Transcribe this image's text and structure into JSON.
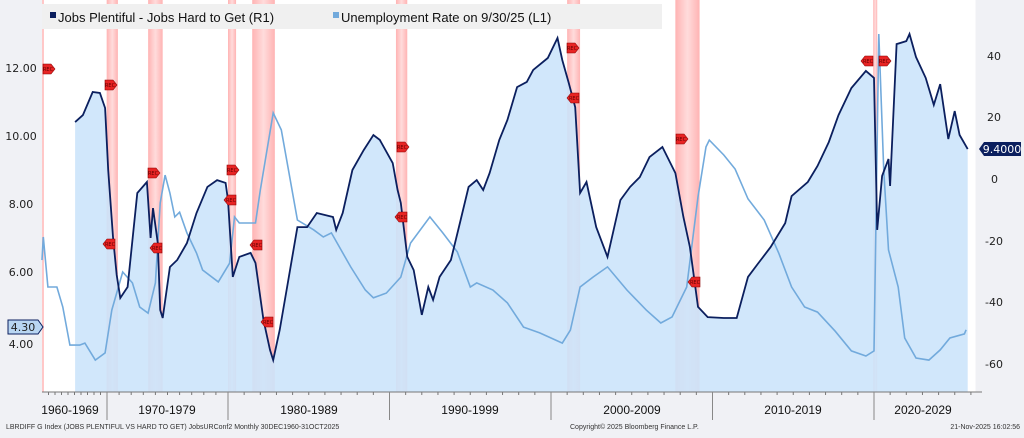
{
  "chart_data": {
    "type": "area",
    "legend": {
      "position": "top-left",
      "items": [
        "Jobs Plentiful - Jobs Hard to Get (R1)",
        "Unemployment Rate on 9/30/25 (L1)"
      ]
    },
    "left_axis": {
      "ticks": [
        "12.00",
        "10.00",
        "8.00",
        "6.00",
        "4.00"
      ],
      "range": [
        2.9,
        13.1
      ]
    },
    "right_axis": {
      "ticks": [
        "40",
        "20",
        "0",
        "-20",
        "-40",
        "-60"
      ],
      "range": [
        -70,
        48
      ]
    },
    "x_axis": {
      "range": [
        1960,
        2026
      ],
      "labels": [
        "1960-1969",
        "1970-1979",
        "1980-1989",
        "1990-1999",
        "2000-2009",
        "2010-2019",
        "2020-2029"
      ]
    },
    "grid": false,
    "colors": {
      "jobs_line": "#0b1f5e",
      "jobs_fill": "#cce4fb",
      "unemployment_line": "#72aadc",
      "recession": "#ff9a9a"
    },
    "last_values": {
      "jobs": "9.4000",
      "unemployment": "4.30"
    },
    "recession_marker_label": "REC",
    "recessions": [
      [
        1960.0,
        1960.15
      ],
      [
        1969.95,
        1970.9
      ],
      [
        1973.4,
        1974.6
      ],
      [
        1980.0,
        1980.5
      ],
      [
        1981.5,
        1982.9
      ],
      [
        1990.4,
        1991.1
      ],
      [
        2001.0,
        2001.8
      ],
      [
        2007.7,
        2009.2
      ],
      [
        2019.95,
        2020.2
      ]
    ],
    "series": [
      {
        "name": "Jobs Plentiful - Jobs Hard to Get (R1)",
        "axis": "right",
        "filled": true,
        "points": [
          [
            1965.1,
            18.2
          ],
          [
            1966.3,
            20.5
          ],
          [
            1967.8,
            28.0
          ],
          [
            1968.9,
            27.7
          ],
          [
            1969.7,
            22.8
          ],
          [
            1970.1,
            2.6
          ],
          [
            1970.5,
            -19.2
          ],
          [
            1970.8,
            -31.6
          ],
          [
            1971.1,
            -39.1
          ],
          [
            1971.7,
            -35.5
          ],
          [
            1972.5,
            -4.9
          ],
          [
            1973.3,
            -1.3
          ],
          [
            1973.6,
            -19.5
          ],
          [
            1973.8,
            -9.8
          ],
          [
            1974.2,
            -21.2
          ],
          [
            1974.4,
            -43.0
          ],
          [
            1974.6,
            -45.6
          ],
          [
            1975.2,
            -29.0
          ],
          [
            1975.8,
            -26.7
          ],
          [
            1976.6,
            -21.2
          ],
          [
            1977.4,
            -11.4
          ],
          [
            1978.3,
            -2.9
          ],
          [
            1979.1,
            -0.7
          ],
          [
            1979.8,
            -1.6
          ],
          [
            1980.0,
            -7.2
          ],
          [
            1980.3,
            -32.2
          ],
          [
            1980.7,
            -25.7
          ],
          [
            1981.4,
            -24.4
          ],
          [
            1981.7,
            -27.7
          ],
          [
            1982.2,
            -46.3
          ],
          [
            1982.6,
            -56.0
          ],
          [
            1982.8,
            -59.3
          ],
          [
            1983.2,
            -49.5
          ],
          [
            1983.7,
            -34.2
          ],
          [
            1984.3,
            -16.0
          ],
          [
            1984.9,
            -16.0
          ],
          [
            1985.5,
            -11.4
          ],
          [
            1986.5,
            -12.7
          ],
          [
            1986.7,
            -16.9
          ],
          [
            1987.1,
            -11.4
          ],
          [
            1987.7,
            2.6
          ],
          [
            1988.4,
            9.1
          ],
          [
            1989.0,
            14.0
          ],
          [
            1989.4,
            12.4
          ],
          [
            1990.2,
            4.9
          ],
          [
            1990.5,
            -3.9
          ],
          [
            1990.7,
            -8.1
          ],
          [
            1991.1,
            -25.7
          ],
          [
            1991.5,
            -30.0
          ],
          [
            1992.0,
            -44.6
          ],
          [
            1992.4,
            -35.5
          ],
          [
            1992.7,
            -39.7
          ],
          [
            1993.1,
            -32.2
          ],
          [
            1993.8,
            -26.7
          ],
          [
            1994.4,
            -13.7
          ],
          [
            1994.9,
            -2.9
          ],
          [
            1995.4,
            -0.7
          ],
          [
            1995.8,
            -3.9
          ],
          [
            1996.2,
            1.6
          ],
          [
            1996.8,
            12.4
          ],
          [
            1997.3,
            18.9
          ],
          [
            1997.9,
            29.6
          ],
          [
            1998.5,
            31.3
          ],
          [
            1998.9,
            35.2
          ],
          [
            1999.8,
            39.1
          ],
          [
            2000.4,
            45.6
          ],
          [
            2000.7,
            38.4
          ],
          [
            2001.1,
            30.9
          ],
          [
            2001.5,
            23.1
          ],
          [
            2001.8,
            -4.9
          ],
          [
            2002.2,
            -1.3
          ],
          [
            2002.8,
            -16.0
          ],
          [
            2003.5,
            -25.7
          ],
          [
            2004.3,
            -7.2
          ],
          [
            2004.9,
            -2.9
          ],
          [
            2005.5,
            0.3
          ],
          [
            2006.1,
            6.8
          ],
          [
            2006.9,
            10.1
          ],
          [
            2007.7,
            1.6
          ],
          [
            2008.2,
            -12.7
          ],
          [
            2008.6,
            -22.5
          ],
          [
            2009.1,
            -42.0
          ],
          [
            2009.7,
            -45.3
          ],
          [
            2010.7,
            -45.6
          ],
          [
            2011.5,
            -45.6
          ],
          [
            2012.2,
            -32.2
          ],
          [
            2012.8,
            -28.0
          ],
          [
            2013.6,
            -22.5
          ],
          [
            2014.5,
            -14.7
          ],
          [
            2014.9,
            -5.9
          ],
          [
            2015.9,
            -1.3
          ],
          [
            2016.5,
            3.9
          ],
          [
            2017.2,
            11.7
          ],
          [
            2017.8,
            20.5
          ],
          [
            2018.6,
            29.3
          ],
          [
            2019.5,
            34.9
          ],
          [
            2020.0,
            32.6
          ],
          [
            2020.2,
            -16.9
          ],
          [
            2020.5,
            0.7
          ],
          [
            2020.9,
            6.2
          ],
          [
            2021.0,
            -2.6
          ],
          [
            2021.4,
            43.6
          ],
          [
            2022.0,
            44.6
          ],
          [
            2022.2,
            46.9
          ],
          [
            2022.6,
            39.4
          ],
          [
            2023.2,
            32.6
          ],
          [
            2023.7,
            23.8
          ],
          [
            2024.1,
            30.6
          ],
          [
            2024.6,
            12.7
          ],
          [
            2025.0,
            21.8
          ],
          [
            2025.3,
            14.0
          ],
          [
            2025.8,
            9.4
          ]
        ]
      },
      {
        "name": "Unemployment Rate on 9/30/25 (L1)",
        "axis": "left",
        "filled": false,
        "points": [
          [
            1960.0,
            6.35
          ],
          [
            1960.2,
            7.03
          ],
          [
            1960.9,
            5.56
          ],
          [
            1962.3,
            5.56
          ],
          [
            1963.2,
            4.97
          ],
          [
            1964.3,
            3.85
          ],
          [
            1965.8,
            3.85
          ],
          [
            1966.6,
            3.91
          ],
          [
            1968.2,
            3.41
          ],
          [
            1969.7,
            3.62
          ],
          [
            1970.4,
            4.88
          ],
          [
            1971.3,
            6.0
          ],
          [
            1972.1,
            5.68
          ],
          [
            1972.7,
            4.97
          ],
          [
            1973.4,
            4.79
          ],
          [
            1974.0,
            5.68
          ],
          [
            1974.4,
            8.03
          ],
          [
            1974.8,
            8.85
          ],
          [
            1975.2,
            8.32
          ],
          [
            1975.6,
            7.62
          ],
          [
            1976.0,
            7.76
          ],
          [
            1976.6,
            7.15
          ],
          [
            1977.4,
            6.56
          ],
          [
            1977.9,
            6.06
          ],
          [
            1979.2,
            5.71
          ],
          [
            1980.1,
            6.26
          ],
          [
            1980.4,
            7.62
          ],
          [
            1980.7,
            7.44
          ],
          [
            1981.7,
            7.44
          ],
          [
            1982.0,
            8.41
          ],
          [
            1982.8,
            10.68
          ],
          [
            1983.3,
            10.18
          ],
          [
            1984.3,
            7.53
          ],
          [
            1985.3,
            7.24
          ],
          [
            1985.9,
            7.03
          ],
          [
            1986.4,
            7.15
          ],
          [
            1987.6,
            6.15
          ],
          [
            1988.5,
            5.47
          ],
          [
            1989.0,
            5.24
          ],
          [
            1989.8,
            5.38
          ],
          [
            1990.7,
            5.85
          ],
          [
            1991.3,
            6.85
          ],
          [
            1992.5,
            7.62
          ],
          [
            1993.3,
            7.15
          ],
          [
            1994.2,
            6.59
          ],
          [
            1995.0,
            5.56
          ],
          [
            1995.4,
            5.68
          ],
          [
            1996.4,
            5.47
          ],
          [
            1997.3,
            5.09
          ],
          [
            1998.3,
            4.38
          ],
          [
            1999.3,
            4.21
          ],
          [
            2000.7,
            3.91
          ],
          [
            2001.2,
            4.29
          ],
          [
            2001.8,
            5.56
          ],
          [
            2002.6,
            5.85
          ],
          [
            2003.5,
            6.15
          ],
          [
            2004.7,
            5.47
          ],
          [
            2005.9,
            4.88
          ],
          [
            2006.8,
            4.5
          ],
          [
            2007.5,
            4.68
          ],
          [
            2008.4,
            5.56
          ],
          [
            2009.1,
            8.21
          ],
          [
            2009.6,
            9.68
          ],
          [
            2009.8,
            9.88
          ],
          [
            2010.7,
            9.44
          ],
          [
            2011.4,
            9.03
          ],
          [
            2012.2,
            8.15
          ],
          [
            2013.2,
            7.53
          ],
          [
            2014.1,
            6.56
          ],
          [
            2014.9,
            5.56
          ],
          [
            2015.7,
            4.97
          ],
          [
            2016.5,
            4.82
          ],
          [
            2017.6,
            4.26
          ],
          [
            2018.6,
            3.68
          ],
          [
            2019.5,
            3.53
          ],
          [
            2020.0,
            3.68
          ],
          [
            2020.3,
            13.0
          ],
          [
            2020.6,
            9.03
          ],
          [
            2020.9,
            6.65
          ],
          [
            2021.5,
            5.56
          ],
          [
            2021.9,
            4.06
          ],
          [
            2022.6,
            3.47
          ],
          [
            2023.4,
            3.41
          ],
          [
            2024.1,
            3.71
          ],
          [
            2024.7,
            4.06
          ],
          [
            2025.6,
            4.18
          ],
          [
            2025.7,
            4.3
          ]
        ]
      }
    ]
  },
  "footer": {
    "source": "LBRDIFF G Index (JOBS PLENTIFUL VS HARD TO GET) JobsURConf2 Monthly 30DEC1960-31OCT2025",
    "copyright": "Copyright© 2025 Bloomberg Finance L.P.",
    "timestamp": "21-Nov-2025 16:02:56"
  }
}
